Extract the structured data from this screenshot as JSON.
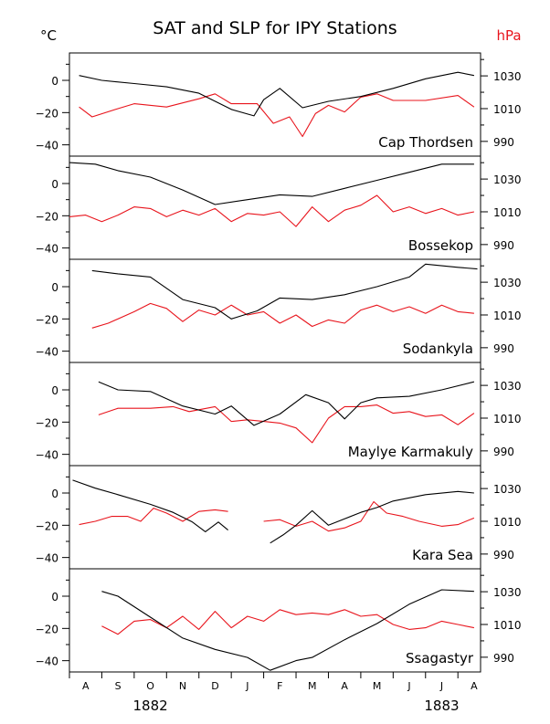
{
  "title": "SAT and SLP for IPY Stations",
  "left_unit": "°C",
  "right_unit": "hPa",
  "colors": {
    "sat": "#000000",
    "slp": "#e8141c",
    "axis": "#000000"
  },
  "x_axis": {
    "month_labels": [
      "A",
      "S",
      "O",
      "N",
      "D",
      "J",
      "F",
      "M",
      "A",
      "M",
      "J",
      "J",
      "A"
    ],
    "year_labels": [
      {
        "text": "1882",
        "month_index": 2.5
      },
      {
        "text": "1883",
        "month_index": 11.5
      }
    ]
  },
  "chart_data": {
    "type": "line",
    "x_unit": "months since Aug 1882",
    "x_range": [
      0,
      12.7
    ],
    "sat_axis": {
      "label": "°C",
      "range": [
        -47,
        17
      ],
      "ticks": [
        0,
        -20,
        -40
      ]
    },
    "slp_axis": {
      "label": "hPa",
      "range": [
        981,
        1044
      ],
      "ticks": [
        1030,
        1010,
        990
      ]
    },
    "panels": [
      {
        "station": "Cap Thordsen",
        "sat": {
          "name": "SAT",
          "points": [
            [
              0.3,
              3
            ],
            [
              1,
              0
            ],
            [
              2,
              -2
            ],
            [
              3,
              -4
            ],
            [
              4,
              -8
            ],
            [
              5,
              -18
            ],
            [
              5.7,
              -22
            ],
            [
              6,
              -12
            ],
            [
              6.5,
              -5
            ],
            [
              7.2,
              -17
            ],
            [
              8,
              -13
            ],
            [
              9,
              -10
            ],
            [
              10,
              -5
            ],
            [
              11,
              1
            ],
            [
              12,
              5
            ],
            [
              12.5,
              3
            ]
          ]
        },
        "slp": {
          "name": "SLP",
          "points": [
            [
              0.3,
              1011
            ],
            [
              0.7,
              1005
            ],
            [
              1.5,
              1010
            ],
            [
              2,
              1013
            ],
            [
              3,
              1011
            ],
            [
              4,
              1016
            ],
            [
              4.5,
              1019
            ],
            [
              5,
              1013
            ],
            [
              5.8,
              1013
            ],
            [
              6.3,
              1001
            ],
            [
              6.8,
              1005
            ],
            [
              7.2,
              993
            ],
            [
              7.6,
              1007
            ],
            [
              8,
              1012
            ],
            [
              8.5,
              1008
            ],
            [
              9,
              1017
            ],
            [
              9.5,
              1019
            ],
            [
              10,
              1015
            ],
            [
              11,
              1015
            ],
            [
              12,
              1018
            ],
            [
              12.5,
              1011
            ]
          ]
        }
      },
      {
        "station": "Bossekop",
        "sat": {
          "name": "SAT",
          "points": [
            [
              0,
              13
            ],
            [
              0.8,
              12
            ],
            [
              1.5,
              8
            ],
            [
              2.5,
              4
            ],
            [
              3.5,
              -4
            ],
            [
              4.5,
              -13
            ],
            [
              5.5,
              -10
            ],
            [
              6.5,
              -7
            ],
            [
              7.5,
              -8
            ],
            [
              8.5,
              -3
            ],
            [
              9.5,
              2
            ],
            [
              10.5,
              7
            ],
            [
              11.5,
              12
            ],
            [
              12.5,
              12
            ]
          ]
        },
        "slp": {
          "name": "SLP",
          "points": [
            [
              0,
              1007
            ],
            [
              0.5,
              1008
            ],
            [
              1,
              1004
            ],
            [
              1.5,
              1008
            ],
            [
              2,
              1013
            ],
            [
              2.5,
              1012
            ],
            [
              3,
              1007
            ],
            [
              3.5,
              1011
            ],
            [
              4,
              1008
            ],
            [
              4.5,
              1012
            ],
            [
              5,
              1004
            ],
            [
              5.5,
              1009
            ],
            [
              6,
              1008
            ],
            [
              6.5,
              1010
            ],
            [
              7,
              1001
            ],
            [
              7.5,
              1013
            ],
            [
              8,
              1004
            ],
            [
              8.5,
              1011
            ],
            [
              9,
              1014
            ],
            [
              9.5,
              1020
            ],
            [
              10,
              1010
            ],
            [
              10.5,
              1013
            ],
            [
              11,
              1009
            ],
            [
              11.5,
              1012
            ],
            [
              12,
              1008
            ],
            [
              12.5,
              1010
            ]
          ]
        }
      },
      {
        "station": "Sodankyla",
        "sat": {
          "name": "SAT",
          "points": [
            [
              0.7,
              10
            ],
            [
              1.5,
              8
            ],
            [
              2.5,
              6
            ],
            [
              3.5,
              -8
            ],
            [
              4.5,
              -13
            ],
            [
              5,
              -20
            ],
            [
              5.8,
              -15
            ],
            [
              6.5,
              -7
            ],
            [
              7.5,
              -8
            ],
            [
              8.5,
              -5
            ],
            [
              9.5,
              0
            ],
            [
              10.5,
              6
            ],
            [
              11,
              14
            ],
            [
              12,
              12
            ],
            [
              12.6,
              11
            ]
          ]
        },
        "slp": {
          "name": "SLP",
          "points": [
            [
              0.7,
              1002
            ],
            [
              1.2,
              1005
            ],
            [
              2,
              1012
            ],
            [
              2.5,
              1017
            ],
            [
              3,
              1014
            ],
            [
              3.5,
              1006
            ],
            [
              4,
              1013
            ],
            [
              4.5,
              1010
            ],
            [
              5,
              1016
            ],
            [
              5.5,
              1010
            ],
            [
              6,
              1012
            ],
            [
              6.5,
              1005
            ],
            [
              7,
              1010
            ],
            [
              7.5,
              1003
            ],
            [
              8,
              1007
            ],
            [
              8.5,
              1005
            ],
            [
              9,
              1013
            ],
            [
              9.5,
              1016
            ],
            [
              10,
              1012
            ],
            [
              10.5,
              1015
            ],
            [
              11,
              1011
            ],
            [
              11.5,
              1016
            ],
            [
              12,
              1012
            ],
            [
              12.5,
              1011
            ]
          ]
        }
      },
      {
        "station": "Maylye Karmakuly",
        "sat": {
          "name": "SAT",
          "points": [
            [
              0.9,
              5
            ],
            [
              1.5,
              0
            ],
            [
              2.5,
              -1
            ],
            [
              3.5,
              -10
            ],
            [
              4.5,
              -15
            ],
            [
              5,
              -10
            ],
            [
              5.7,
              -22
            ],
            [
              6.5,
              -15
            ],
            [
              7.3,
              -3
            ],
            [
              8,
              -8
            ],
            [
              8.5,
              -18
            ],
            [
              9,
              -8
            ],
            [
              9.5,
              -5
            ],
            [
              10.5,
              -4
            ],
            [
              11.5,
              0
            ],
            [
              12.5,
              5
            ]
          ]
        },
        "slp": {
          "name": "SLP",
          "points": [
            [
              0.9,
              1012
            ],
            [
              1.5,
              1016
            ],
            [
              2.5,
              1016
            ],
            [
              3.2,
              1017
            ],
            [
              3.7,
              1014
            ],
            [
              4.5,
              1017
            ],
            [
              5,
              1008
            ],
            [
              5.5,
              1009
            ],
            [
              6,
              1008
            ],
            [
              6.5,
              1007
            ],
            [
              7,
              1004
            ],
            [
              7.5,
              995
            ],
            [
              8,
              1010
            ],
            [
              8.5,
              1017
            ],
            [
              9,
              1017
            ],
            [
              9.5,
              1018
            ],
            [
              10,
              1013
            ],
            [
              10.5,
              1014
            ],
            [
              11,
              1011
            ],
            [
              11.5,
              1012
            ],
            [
              12,
              1006
            ],
            [
              12.5,
              1013
            ]
          ]
        }
      },
      {
        "station": "Kara Sea",
        "sat": {
          "name": "SAT",
          "points": [
            [
              0.1,
              8
            ],
            [
              0.8,
              3
            ],
            [
              1.5,
              -1
            ],
            [
              2.5,
              -7
            ],
            [
              3.2,
              -12
            ],
            [
              3.8,
              -18
            ],
            [
              4.2,
              -24
            ],
            [
              4.6,
              -18
            ],
            [
              4.9,
              -23
            ],
            [
              null,
              null
            ],
            [
              6.2,
              -31
            ],
            [
              6.6,
              -26
            ],
            [
              7,
              -20
            ],
            [
              7.5,
              -11
            ],
            [
              8,
              -20
            ],
            [
              8.5,
              -16
            ],
            [
              9,
              -12
            ],
            [
              9.5,
              -9
            ],
            [
              10,
              -5
            ],
            [
              10.5,
              -3
            ],
            [
              11,
              -1
            ],
            [
              12,
              1
            ],
            [
              12.5,
              0
            ]
          ]
        },
        "slp": {
          "name": "SLP",
          "points": [
            [
              0.3,
              1008
            ],
            [
              0.8,
              1010
            ],
            [
              1.3,
              1013
            ],
            [
              1.8,
              1013
            ],
            [
              2.2,
              1010
            ],
            [
              2.6,
              1018
            ],
            [
              3,
              1015
            ],
            [
              3.5,
              1010
            ],
            [
              4,
              1016
            ],
            [
              4.5,
              1017
            ],
            [
              4.9,
              1016
            ],
            [
              null,
              null
            ],
            [
              6,
              1010
            ],
            [
              6.5,
              1011
            ],
            [
              7,
              1007
            ],
            [
              7.5,
              1010
            ],
            [
              8,
              1004
            ],
            [
              8.5,
              1006
            ],
            [
              9,
              1010
            ],
            [
              9.4,
              1022
            ],
            [
              9.8,
              1015
            ],
            [
              10.3,
              1013
            ],
            [
              10.8,
              1010
            ],
            [
              11.5,
              1007
            ],
            [
              12,
              1008
            ],
            [
              12.5,
              1012
            ]
          ]
        }
      },
      {
        "station": "Ssagastyr",
        "sat": {
          "name": "SAT",
          "points": [
            [
              1,
              3
            ],
            [
              1.5,
              0
            ],
            [
              2.5,
              -13
            ],
            [
              3.5,
              -26
            ],
            [
              4.5,
              -33
            ],
            [
              5.5,
              -38
            ],
            [
              6.2,
              -46
            ],
            [
              7,
              -40
            ],
            [
              7.5,
              -38
            ],
            [
              8.5,
              -27
            ],
            [
              9.5,
              -17
            ],
            [
              10.5,
              -5
            ],
            [
              11.5,
              4
            ],
            [
              12.5,
              3
            ]
          ]
        },
        "slp": {
          "name": "SLP",
          "points": [
            [
              1,
              1009
            ],
            [
              1.5,
              1004
            ],
            [
              2,
              1012
            ],
            [
              2.5,
              1013
            ],
            [
              3,
              1008
            ],
            [
              3.5,
              1015
            ],
            [
              4,
              1007
            ],
            [
              4.5,
              1018
            ],
            [
              5,
              1008
            ],
            [
              5.5,
              1015
            ],
            [
              6,
              1012
            ],
            [
              6.5,
              1019
            ],
            [
              7,
              1016
            ],
            [
              7.5,
              1017
            ],
            [
              8,
              1016
            ],
            [
              8.5,
              1019
            ],
            [
              9,
              1015
            ],
            [
              9.5,
              1016
            ],
            [
              10,
              1010
            ],
            [
              10.5,
              1007
            ],
            [
              11,
              1008
            ],
            [
              11.5,
              1012
            ],
            [
              12,
              1010
            ],
            [
              12.5,
              1008
            ]
          ]
        }
      }
    ]
  }
}
